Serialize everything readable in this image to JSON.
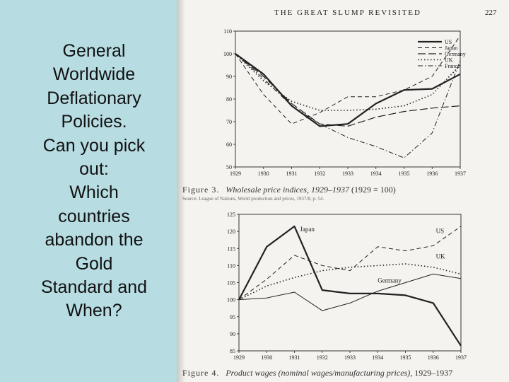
{
  "slide": {
    "lines": [
      "General",
      "Worldwide",
      "Deflationary",
      "Policies.",
      "Can you pick",
      "out:",
      "Which",
      "countries",
      "abandon the",
      "Gold",
      "Standard and",
      "When?"
    ]
  },
  "book_page": {
    "running_head": "THE GREAT SLUMP REVISITED",
    "page_number": "227",
    "figure3": {
      "number": "Figure 3.",
      "title": "Wholesale price indices, 1929–1937",
      "suffix": "(1929 = 100)",
      "source": "Source: League of Nations, World production and prices, 1937/8, p. 54."
    },
    "figure4": {
      "number": "Figure 4.",
      "title": "Product wages (nominal wages/manufacturing prices),",
      "suffix": "1929–1937"
    }
  },
  "colors": {
    "panel": "#b7dde3",
    "page": "#f4f3ef",
    "ink": "#222222"
  },
  "chart_data": [
    {
      "type": "line",
      "x": [
        1929,
        1930,
        1931,
        1932,
        1933,
        1934,
        1935,
        1936,
        1937
      ],
      "xticks": [
        "1929",
        "1930",
        "1931",
        "1932",
        "1933",
        "1934",
        "1935",
        "1936",
        "1937"
      ],
      "ylim": [
        50,
        110
      ],
      "yticks": [
        "50",
        "60",
        "70",
        "80",
        "90",
        "100",
        "110"
      ],
      "legend_position": "top-right",
      "series": [
        {
          "name": "US",
          "style": "solid-thick",
          "values": [
            100,
            91,
            77,
            68,
            69,
            78,
            84,
            84.5,
            91
          ]
        },
        {
          "name": "Japan",
          "style": "dashed",
          "values": [
            100,
            82,
            69,
            74,
            81,
            81,
            84,
            90,
            108
          ]
        },
        {
          "name": "Germany",
          "style": "longdash",
          "values": [
            100,
            90,
            78,
            69,
            68,
            72,
            74.5,
            76,
            77
          ]
        },
        {
          "name": "UK",
          "style": "dotted",
          "values": [
            100,
            88,
            79,
            75,
            75,
            75.5,
            77,
            82,
            95
          ]
        },
        {
          "name": "France",
          "style": "dashdot",
          "values": [
            100,
            89,
            77,
            69,
            63,
            59,
            54,
            65,
            97
          ]
        }
      ]
    },
    {
      "type": "line",
      "x": [
        1929,
        1930,
        1931,
        1932,
        1933,
        1934,
        1935,
        1936,
        1937
      ],
      "xticks": [
        "1929",
        "1930",
        "1931",
        "1932",
        "1933",
        "1934",
        "1935",
        "1936",
        "1937"
      ],
      "ylim": [
        85,
        125
      ],
      "yticks": [
        "85",
        "90",
        "95",
        "100",
        "105",
        "110",
        "115",
        "120",
        "125"
      ],
      "series": [
        {
          "name": "Japan",
          "style": "solid-thick",
          "label_year": 1931.2,
          "label_value": 120,
          "values": [
            100,
            115.5,
            121.5,
            102.8,
            101.8,
            101.8,
            101.3,
            99,
            86.5
          ]
        },
        {
          "name": "US",
          "style": "dashed",
          "label_year": 1936.1,
          "label_value": 119.5,
          "values": [
            100,
            106,
            113,
            110,
            108.5,
            115.5,
            114.3,
            115.8,
            121.5
          ]
        },
        {
          "name": "UK",
          "style": "dotted",
          "label_year": 1936.1,
          "label_value": 112,
          "values": [
            100,
            104,
            106.5,
            108.5,
            109.5,
            110,
            110.5,
            109.5,
            107.5
          ]
        },
        {
          "name": "Germany",
          "style": "solid-thin",
          "label_year": 1934,
          "label_value": 105,
          "values": [
            100,
            100.5,
            102.2,
            96.8,
            99,
            102.5,
            105,
            107.5,
            106.2
          ]
        }
      ]
    }
  ]
}
